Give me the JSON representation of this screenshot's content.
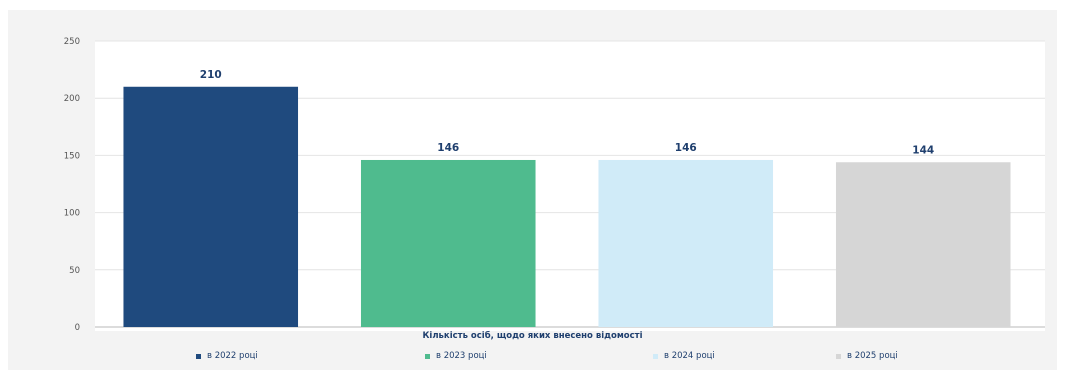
{
  "chart_data": {
    "type": "bar",
    "categories": [
      "в 2022 році",
      "в 2023 році",
      "в 2024 році",
      "в 2025 році"
    ],
    "values": [
      210,
      146,
      146,
      144
    ],
    "colors": [
      "#1f4a7e",
      "#4fbb8e",
      "#d0ebf8",
      "#d6d6d6"
    ],
    "title": "",
    "xlabel": "Кількість осіб, щодо яких внесено відомості",
    "ylabel": "",
    "ylim": [
      0,
      250
    ],
    "yticks": [
      "0",
      "50",
      "100",
      "150",
      "200",
      "250"
    ],
    "grid": true,
    "legend": "bottom",
    "data_labels": true
  }
}
